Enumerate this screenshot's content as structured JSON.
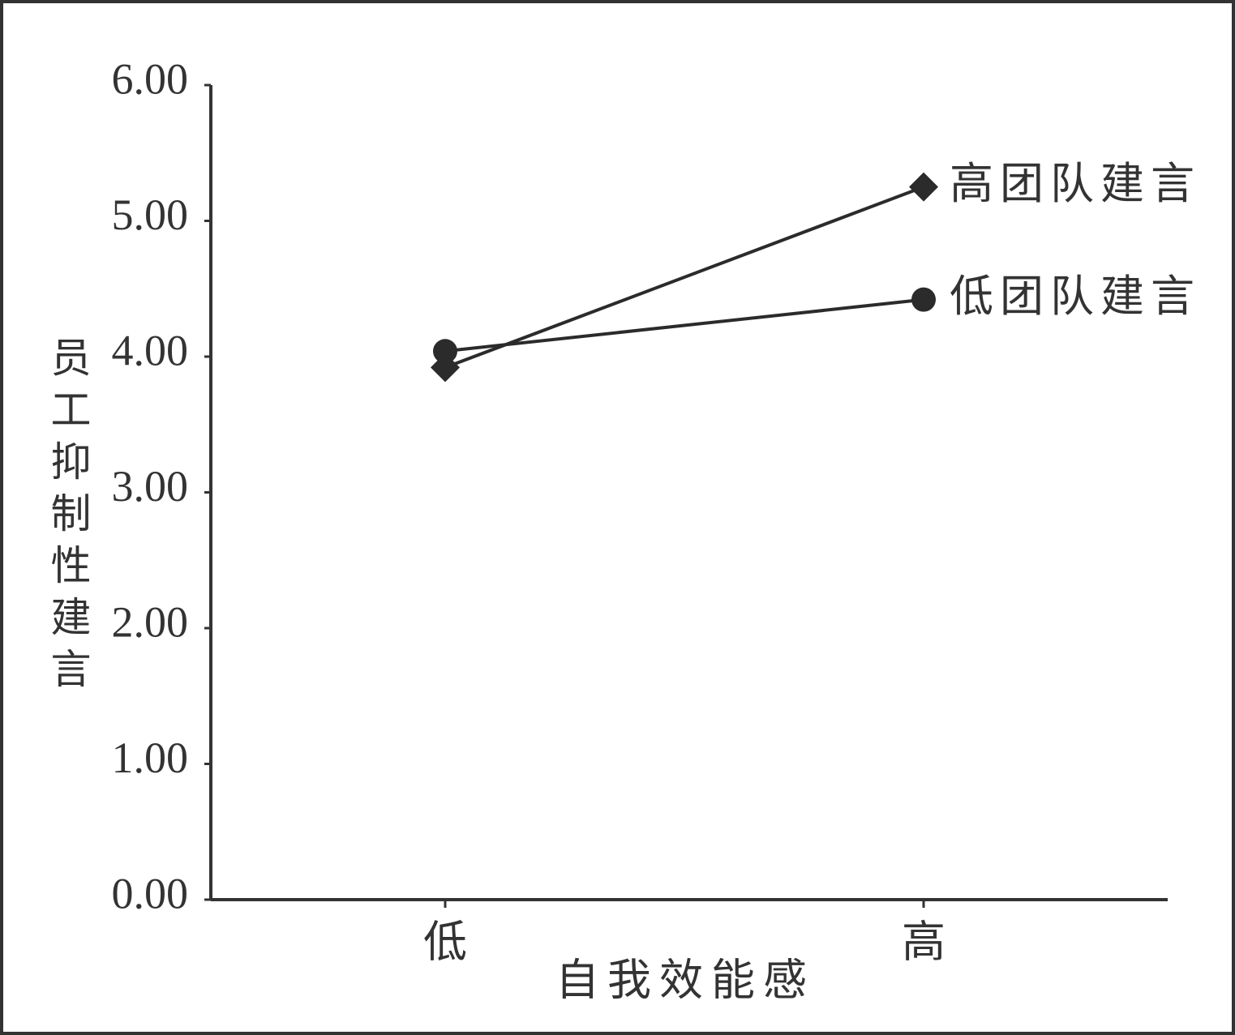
{
  "chart_data": {
    "type": "line",
    "x_label": "自我效能感",
    "y_label": "员工抑制性建言",
    "categories": [
      "低",
      "高"
    ],
    "series": [
      {
        "name": "高团队建言",
        "color": "#2b2b2b",
        "marker": "diamond",
        "values": [
          3.92,
          5.25
        ]
      },
      {
        "name": "低团队建言",
        "color": "#2b2b2b",
        "marker": "circle",
        "values": [
          4.04,
          4.42
        ]
      }
    ],
    "ylim": [
      0,
      6
    ],
    "yticks": [
      {
        "value": 0,
        "label": "0.00"
      },
      {
        "value": 1,
        "label": "1.00"
      },
      {
        "value": 2,
        "label": "2.00"
      },
      {
        "value": 3,
        "label": "3.00"
      },
      {
        "value": 4,
        "label": "4.00"
      },
      {
        "value": 5,
        "label": "5.00"
      },
      {
        "value": 6,
        "label": "6.00"
      }
    ],
    "grid": false
  }
}
